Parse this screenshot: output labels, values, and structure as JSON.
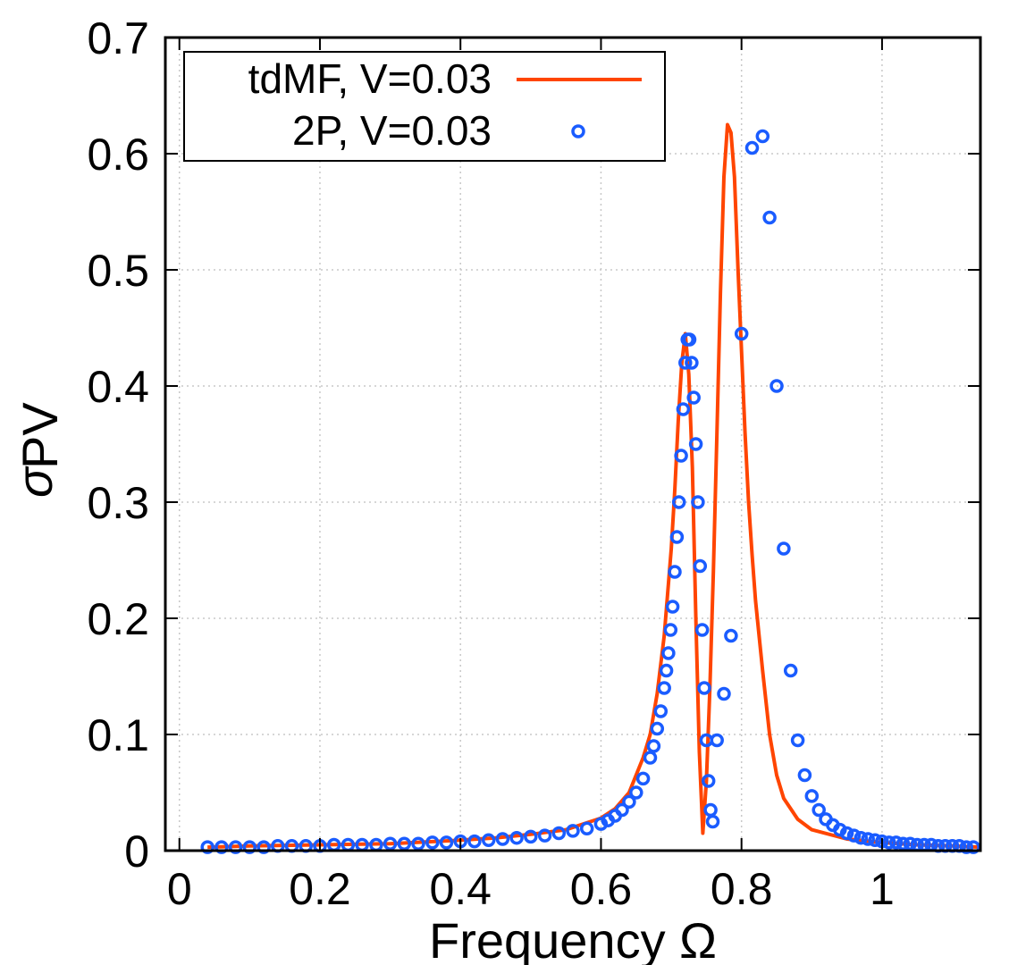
{
  "chart_data": {
    "type": "line",
    "xlabel": "Frequency Ω",
    "ylabel_symbol": "σ",
    "ylabel_subscript": "PV",
    "xlim": [
      -0.02,
      1.14
    ],
    "ylim": [
      0,
      0.7
    ],
    "grid": true,
    "legend_position": "top-left",
    "x_ticks": [
      0,
      0.2,
      0.4,
      0.6,
      0.8,
      1.0
    ],
    "x_tick_labels": [
      "0",
      "0.2",
      "0.4",
      "0.6",
      "0.8",
      "1"
    ],
    "y_ticks": [
      0,
      0.1,
      0.2,
      0.3,
      0.4,
      0.5,
      0.6,
      0.7
    ],
    "y_tick_labels": [
      "0",
      "0.1",
      "0.2",
      "0.3",
      "0.4",
      "0.5",
      "0.6",
      "0.7"
    ],
    "colors": {
      "line": "#ff4500",
      "points": "#1a5cff",
      "grid": "#c8c8c8",
      "axis": "#000000"
    },
    "series": [
      {
        "name": "tdMF, V=0.03",
        "style": "line",
        "x": [
          0.04,
          0.1,
          0.2,
          0.3,
          0.4,
          0.45,
          0.5,
          0.55,
          0.6,
          0.62,
          0.64,
          0.66,
          0.67,
          0.68,
          0.69,
          0.7,
          0.705,
          0.71,
          0.715,
          0.72,
          0.725,
          0.73,
          0.735,
          0.74,
          0.745,
          0.75,
          0.755,
          0.76,
          0.765,
          0.77,
          0.775,
          0.78,
          0.785,
          0.79,
          0.795,
          0.8,
          0.805,
          0.81,
          0.815,
          0.82,
          0.83,
          0.84,
          0.85,
          0.86,
          0.88,
          0.9,
          0.95,
          1.0,
          1.05,
          1.1,
          1.14
        ],
        "y": [
          0.003,
          0.004,
          0.005,
          0.006,
          0.009,
          0.011,
          0.014,
          0.018,
          0.028,
          0.036,
          0.05,
          0.08,
          0.1,
          0.135,
          0.185,
          0.26,
          0.31,
          0.37,
          0.42,
          0.445,
          0.41,
          0.33,
          0.2,
          0.085,
          0.015,
          0.06,
          0.14,
          0.24,
          0.36,
          0.48,
          0.58,
          0.625,
          0.618,
          0.58,
          0.5,
          0.43,
          0.36,
          0.3,
          0.255,
          0.215,
          0.155,
          0.1,
          0.065,
          0.045,
          0.027,
          0.018,
          0.01,
          0.007,
          0.005,
          0.004,
          0.003
        ]
      },
      {
        "name": "2P, V=0.03",
        "style": "points",
        "x": [
          0.04,
          0.06,
          0.08,
          0.1,
          0.12,
          0.14,
          0.16,
          0.18,
          0.2,
          0.22,
          0.24,
          0.26,
          0.28,
          0.3,
          0.32,
          0.34,
          0.36,
          0.38,
          0.4,
          0.42,
          0.44,
          0.46,
          0.48,
          0.5,
          0.52,
          0.54,
          0.56,
          0.58,
          0.6,
          0.61,
          0.62,
          0.63,
          0.64,
          0.65,
          0.66,
          0.67,
          0.675,
          0.68,
          0.685,
          0.69,
          0.693,
          0.696,
          0.699,
          0.702,
          0.705,
          0.708,
          0.711,
          0.714,
          0.717,
          0.72,
          0.723,
          0.726,
          0.729,
          0.732,
          0.735,
          0.738,
          0.741,
          0.744,
          0.747,
          0.75,
          0.753,
          0.756,
          0.759,
          0.765,
          0.775,
          0.785,
          0.8,
          0.815,
          0.83,
          0.84,
          0.85,
          0.86,
          0.87,
          0.88,
          0.89,
          0.9,
          0.91,
          0.92,
          0.93,
          0.94,
          0.95,
          0.96,
          0.97,
          0.98,
          0.99,
          1.0,
          1.01,
          1.02,
          1.03,
          1.04,
          1.05,
          1.06,
          1.07,
          1.08,
          1.09,
          1.1,
          1.11,
          1.12,
          1.13
        ],
        "y": [
          0.003,
          0.003,
          0.003,
          0.003,
          0.003,
          0.004,
          0.004,
          0.004,
          0.004,
          0.005,
          0.005,
          0.005,
          0.005,
          0.006,
          0.006,
          0.006,
          0.007,
          0.007,
          0.008,
          0.008,
          0.009,
          0.01,
          0.011,
          0.012,
          0.013,
          0.015,
          0.017,
          0.019,
          0.023,
          0.026,
          0.03,
          0.035,
          0.042,
          0.05,
          0.062,
          0.08,
          0.09,
          0.105,
          0.12,
          0.14,
          0.155,
          0.17,
          0.19,
          0.21,
          0.24,
          0.27,
          0.3,
          0.34,
          0.38,
          0.42,
          0.44,
          0.44,
          0.42,
          0.39,
          0.35,
          0.3,
          0.245,
          0.19,
          0.14,
          0.095,
          0.06,
          0.035,
          0.025,
          0.095,
          0.135,
          0.185,
          0.445,
          0.605,
          0.615,
          0.545,
          0.4,
          0.26,
          0.155,
          0.095,
          0.065,
          0.047,
          0.035,
          0.027,
          0.022,
          0.018,
          0.015,
          0.013,
          0.011,
          0.01,
          0.009,
          0.008,
          0.007,
          0.007,
          0.006,
          0.006,
          0.005,
          0.005,
          0.005,
          0.004,
          0.004,
          0.004,
          0.004,
          0.003,
          0.003
        ]
      }
    ]
  }
}
